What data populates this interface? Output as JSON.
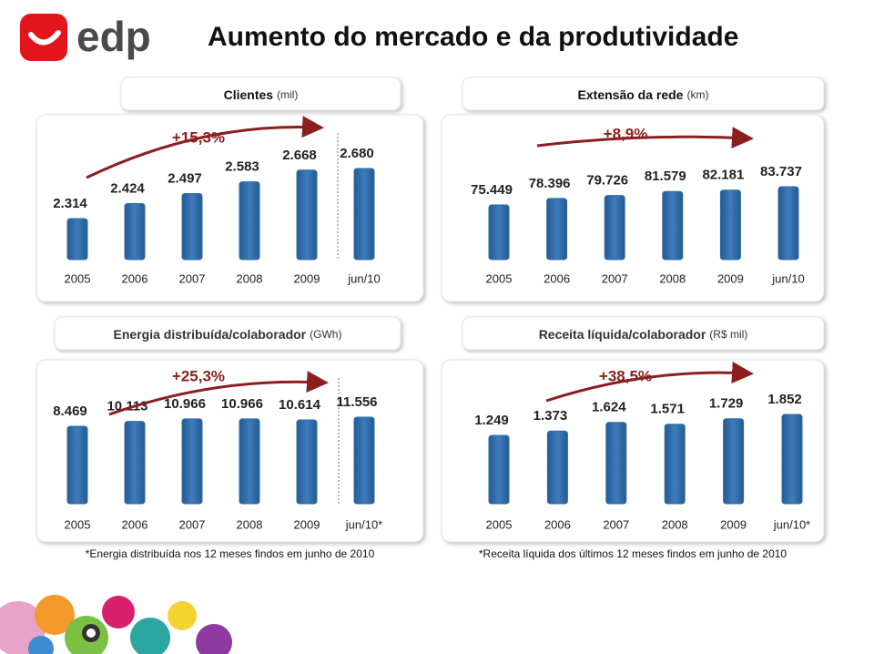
{
  "header": {
    "logo": "edp",
    "title": "Aumento do mercado e da produtividade"
  },
  "chart_data": [
    {
      "type": "bar",
      "title": "Clientes",
      "unit": "(mil)",
      "annotation": "+15,3%",
      "color": "#2f6ca9",
      "categories": [
        "2005",
        "2006",
        "2007",
        "2008",
        "2009",
        "jun/10"
      ],
      "values": [
        2314,
        2424,
        2497,
        2583,
        2668,
        2680
      ],
      "value_labels": [
        "2.314",
        "2.424",
        "2.497",
        "2.583",
        "2.668",
        "2.680"
      ]
    },
    {
      "type": "bar",
      "title": "Extensão da rede",
      "unit": "(km)",
      "annotation": "+8,9%",
      "color": "#2f6ca9",
      "categories": [
        "2005",
        "2006",
        "2007",
        "2008",
        "2009",
        "jun/10"
      ],
      "values": [
        75449,
        78396,
        79726,
        81579,
        82181,
        83737
      ],
      "value_labels": [
        "75.449",
        "78.396",
        "79.726",
        "81.579",
        "82.181",
        "83.737"
      ]
    },
    {
      "type": "bar",
      "title": "Energia distribuída/colaborador",
      "unit": "(GWh)",
      "annotation": "+25,3%",
      "color": "#2f6ca9",
      "categories": [
        "2005",
        "2006",
        "2007",
        "2008",
        "2009",
        "jun/10*"
      ],
      "values": [
        8469,
        10113,
        10966,
        10966,
        10614,
        11556
      ],
      "value_labels": [
        "8.469",
        "10.113",
        "10.966",
        "10.966",
        "10.614",
        "11.556"
      ],
      "note": "*Energia distribuída nos 12 meses findos em junho de 2010"
    },
    {
      "type": "bar",
      "title": "Receita líquida/colaborador",
      "unit": "(R$ mil)",
      "annotation": "+38,5%",
      "color": "#2f6ca9",
      "categories": [
        "2005",
        "2006",
        "2007",
        "2008",
        "2009",
        "jun/10*"
      ],
      "values": [
        1249,
        1373,
        1624,
        1571,
        1729,
        1852
      ],
      "value_labels": [
        "1.249",
        "1.373",
        "1.624",
        "1.571",
        "1.729",
        "1.852"
      ],
      "note": "*Receita líquida dos últimos 12 meses findos em junho de 2010"
    }
  ]
}
